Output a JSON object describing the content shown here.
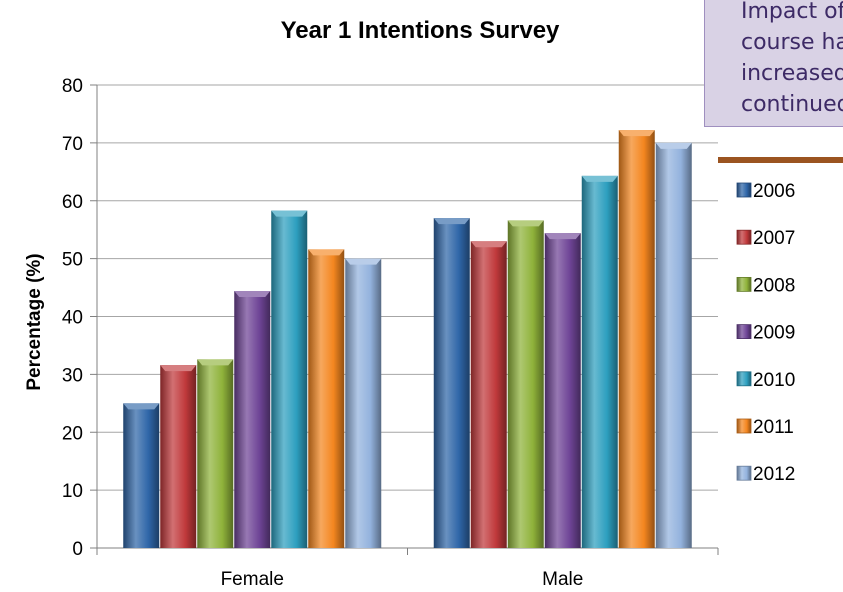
{
  "chart_data": {
    "type": "bar",
    "title": "Year 1 Intentions Survey",
    "xlabel": "",
    "ylabel": "Percentage (%)",
    "categories": [
      "Female",
      "Male"
    ],
    "ylim": [
      0,
      80
    ],
    "yticks": [
      0,
      10,
      20,
      30,
      40,
      50,
      60,
      70,
      80
    ],
    "grid": true,
    "style": "3d-cylinder-bars",
    "legend_position": "right",
    "series": [
      {
        "name": "2006",
        "values": [
          25,
          57
        ],
        "color": "#2f66a8"
      },
      {
        "name": "2007",
        "values": [
          31.6,
          53
        ],
        "color": "#c0393b"
      },
      {
        "name": "2008",
        "values": [
          32.6,
          56.6
        ],
        "color": "#8fb23a"
      },
      {
        "name": "2009",
        "values": [
          44.4,
          54.4
        ],
        "color": "#6e4496"
      },
      {
        "name": "2010",
        "values": [
          58.3,
          64.3
        ],
        "color": "#2d9fbf"
      },
      {
        "name": "2011",
        "values": [
          51.6,
          72.2
        ],
        "color": "#f4861f"
      },
      {
        "name": "2012",
        "values": [
          50,
          70
        ],
        "color": "#93b2dd"
      }
    ]
  },
  "callout": {
    "lines": [
      "Impact of",
      "course has",
      "increased",
      "continued"
    ]
  }
}
